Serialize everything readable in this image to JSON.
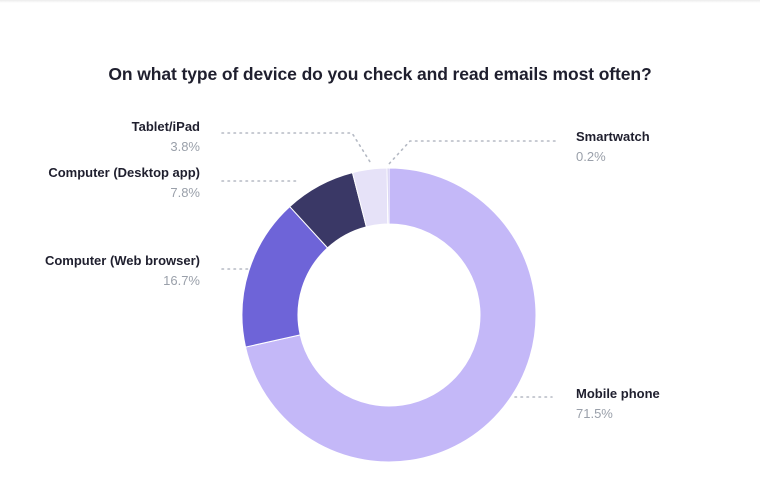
{
  "chart_data": {
    "type": "pie",
    "variant": "donut",
    "title": "On what type of device do you check and read emails most often?",
    "categories": [
      "Mobile phone",
      "Computer (Web browser)",
      "Computer (Desktop app)",
      "Tablet/iPad",
      "Smartwatch"
    ],
    "values": [
      71.5,
      16.7,
      7.8,
      3.8,
      0.2
    ],
    "value_labels": [
      "71.5%",
      "16.7%",
      "7.8%",
      "3.8%",
      "0.2%"
    ],
    "colors": [
      "#c4b8f8",
      "#6e64d8",
      "#3a3866",
      "#e6e2f8",
      "#b9b2e8"
    ],
    "start_angle": "12 o'clock, clockwise",
    "legend": "none (leader-line labels)"
  },
  "labels": {
    "tablet": {
      "name": "Tablet/iPad",
      "value": "3.8%"
    },
    "desktop": {
      "name": "Computer (Desktop app)",
      "value": "7.8%"
    },
    "web": {
      "name": "Computer (Web browser)",
      "value": "16.7%"
    },
    "smartwatch": {
      "name": "Smartwatch",
      "value": "0.2%"
    },
    "mobile": {
      "name": "Mobile phone",
      "value": "71.5%"
    }
  }
}
